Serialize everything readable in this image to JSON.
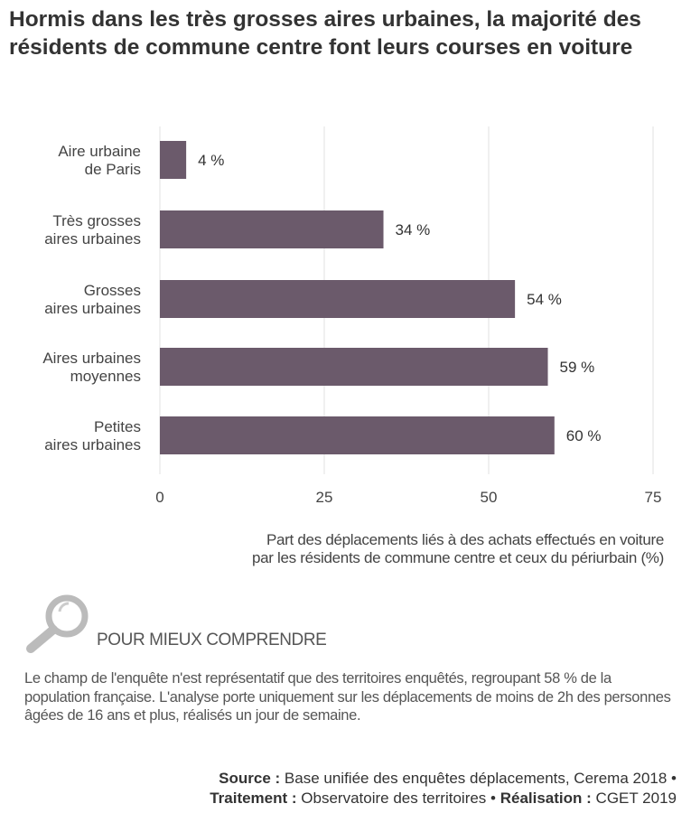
{
  "title": "Hormis dans les très grosses aires urbaines, la majorité des résidents de commune centre font leurs courses en voiture",
  "chart_data": {
    "type": "bar",
    "orientation": "horizontal",
    "categories": [
      [
        "Aire urbaine",
        "de Paris"
      ],
      [
        "Très grosses",
        "aires urbaines"
      ],
      [
        "Grosses",
        "aires urbaines"
      ],
      [
        "Aires urbaines",
        "moyennes"
      ],
      [
        "Petites",
        "aires urbaines"
      ]
    ],
    "values": [
      4,
      34,
      54,
      59,
      60
    ],
    "data_labels": [
      "4 %",
      "34 %",
      "54 %",
      "59 %",
      "60 %"
    ],
    "xlabel": [
      "Part des déplacements liés à des achats effectués en voiture",
      "par les résidents de commune centre et ceux du périurbain (%)"
    ],
    "xlim": [
      0,
      75
    ],
    "xticks": [
      0,
      25,
      50,
      75
    ],
    "grid": "vertical",
    "bar_color": "#6b5a6b"
  },
  "info": {
    "heading": "POUR MIEUX COMPRENDRE",
    "icon": "magnifier-icon",
    "text": "Le champ de l'enquête n'est représentatif que des territoires enquêtés, regroupant 58 % de la population française. L'analyse porte uniquement sur les déplacements de moins de 2h des personnes âgées de 16 ans et plus, réalisés un jour de semaine."
  },
  "source": {
    "source_label": "Source :",
    "source_text": " Base unifiée des enquêtes déplacements, Cerema 2018 •",
    "traitement_label": "Traitement :",
    "traitement_text": " Observatoire des territoires • ",
    "realisation_label": "Réalisation :",
    "realisation_text": " CGET 2019"
  }
}
